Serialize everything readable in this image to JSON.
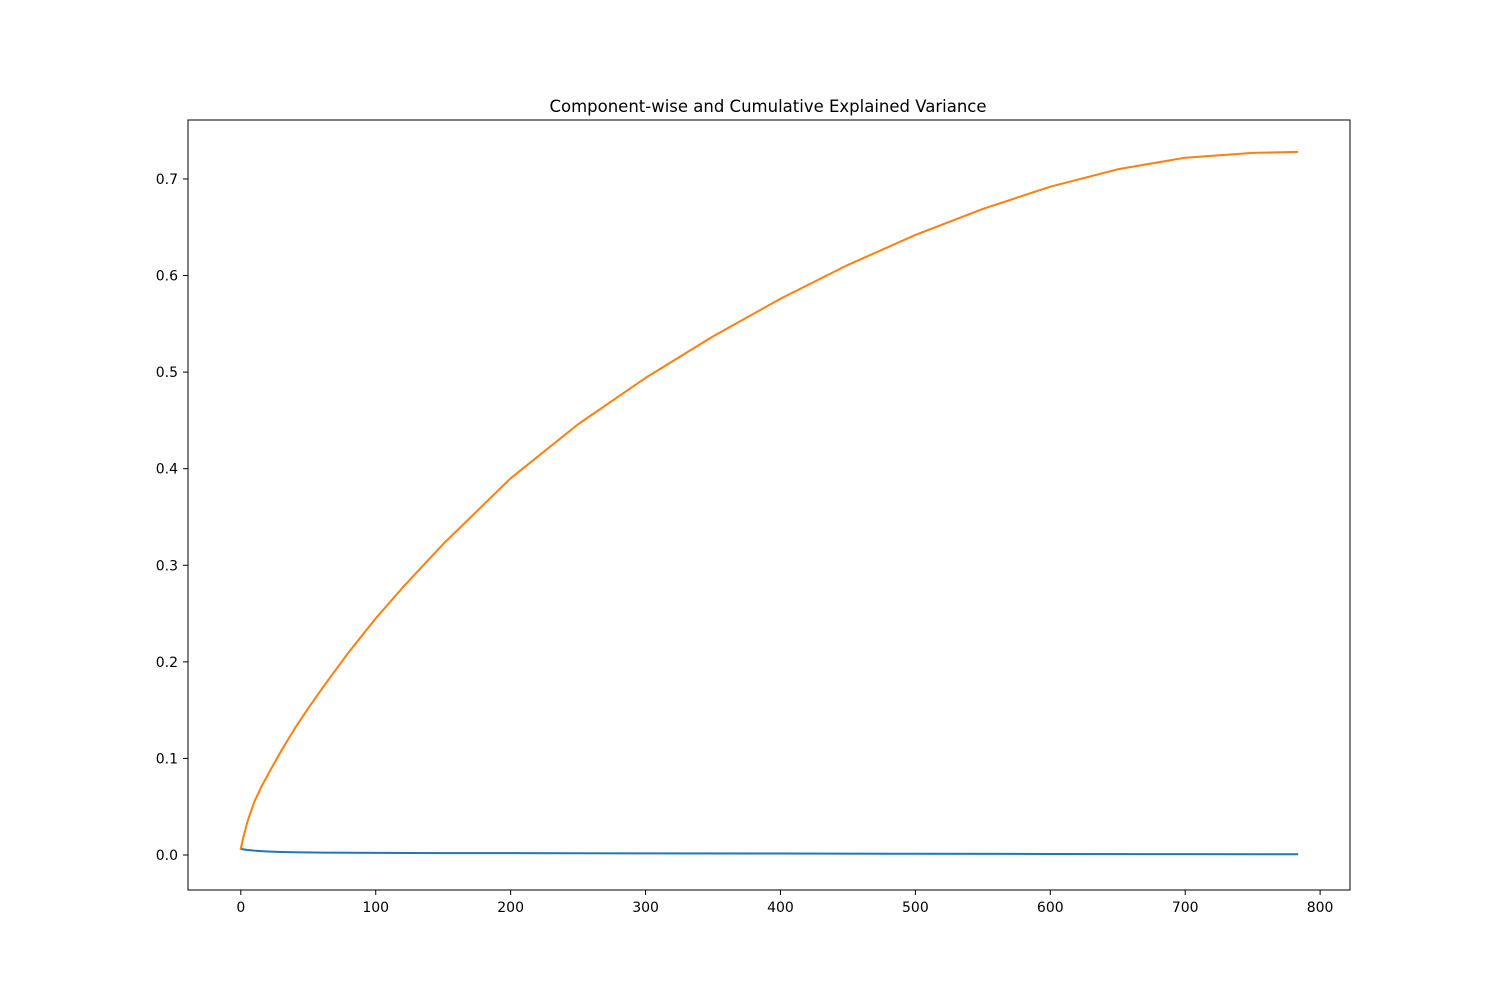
{
  "chart_data": {
    "type": "line",
    "title": "Component-wise and Cumulative Explained Variance",
    "xlabel": "",
    "ylabel": "",
    "xlim": [
      -39.15,
      822.15
    ],
    "ylim": [
      -0.03624,
      0.76104
    ],
    "xticks": [
      0,
      100,
      200,
      300,
      400,
      500,
      600,
      700,
      800
    ],
    "yticks": [
      0.0,
      0.1,
      0.2,
      0.3,
      0.4,
      0.5,
      0.6,
      0.7
    ],
    "xtick_labels": [
      "0",
      "100",
      "200",
      "300",
      "400",
      "500",
      "600",
      "700",
      "800"
    ],
    "ytick_labels": [
      "0.0",
      "0.1",
      "0.2",
      "0.3",
      "0.4",
      "0.5",
      "0.6",
      "0.7"
    ],
    "grid": false,
    "legend": "none",
    "series": [
      {
        "color": "#1f77b4",
        "x": [
          0,
          2,
          5,
          10,
          15,
          20,
          30,
          40,
          60,
          80,
          100,
          150,
          200,
          300,
          400,
          500,
          600,
          700,
          783
        ],
        "y": [
          0.0065,
          0.0058,
          0.0052,
          0.0045,
          0.004,
          0.0036,
          0.0031,
          0.0028,
          0.0025,
          0.0023,
          0.0022,
          0.002,
          0.0019,
          0.0017,
          0.0015,
          0.0013,
          0.0011,
          0.0009,
          0.0008
        ]
      },
      {
        "color": "#ff7f0e",
        "x": [
          0,
          2,
          5,
          10,
          15,
          20,
          30,
          40,
          50,
          60,
          80,
          100,
          120,
          150,
          200,
          250,
          300,
          350,
          400,
          450,
          500,
          550,
          600,
          650,
          700,
          750,
          783
        ],
        "y": [
          0.0065,
          0.019,
          0.035,
          0.055,
          0.07,
          0.083,
          0.108,
          0.131,
          0.152,
          0.172,
          0.21,
          0.245,
          0.277,
          0.322,
          0.39,
          0.446,
          0.494,
          0.537,
          0.576,
          0.611,
          0.642,
          0.669,
          0.692,
          0.71,
          0.722,
          0.727,
          0.728
        ]
      }
    ]
  }
}
